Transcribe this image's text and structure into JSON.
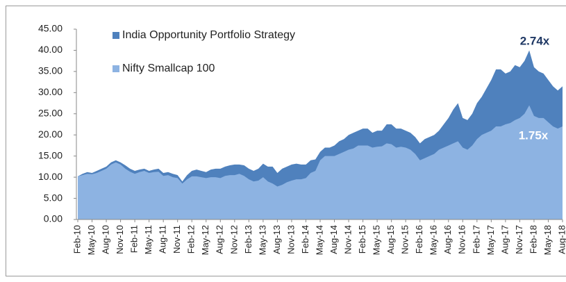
{
  "chart_data": {
    "type": "area",
    "categories": [
      "Feb-10",
      null,
      null,
      "May-10",
      null,
      null,
      "Aug-10",
      null,
      null,
      "Nov-10",
      null,
      null,
      "Feb-11",
      null,
      null,
      "May-11",
      null,
      null,
      "Aug-11",
      null,
      null,
      "Nov-11",
      null,
      null,
      "Feb-12",
      null,
      null,
      "May-12",
      null,
      null,
      "Aug-12",
      null,
      null,
      "Nov-12",
      null,
      null,
      "Feb-13",
      null,
      null,
      "May-13",
      null,
      null,
      "Aug-13",
      null,
      null,
      "Nov-13",
      null,
      null,
      "Feb-14",
      null,
      null,
      "May-14",
      null,
      null,
      "Aug-14",
      null,
      null,
      "Nov-14",
      null,
      null,
      "Feb-15",
      null,
      null,
      "May-15",
      null,
      null,
      "Aug-15",
      null,
      null,
      "Nov-15",
      null,
      null,
      "Feb-16",
      null,
      null,
      "May-16",
      null,
      null,
      "Aug-16",
      null,
      null,
      "Nov-16",
      null,
      null,
      "Feb-17",
      null,
      null,
      "May-17",
      null,
      null,
      "Aug-17",
      null,
      null,
      "Nov-17",
      null,
      null,
      "Feb-18",
      null,
      null,
      "May-18",
      null,
      null,
      "Aug-18"
    ],
    "series": [
      {
        "name": "India Opportunity Portfolio Strategy",
        "color": "#4f81bd",
        "values": [
          10.2,
          10.8,
          11.2,
          11,
          11.5,
          12,
          12.5,
          13.5,
          14,
          13.5,
          12.8,
          12,
          11.5,
          11.8,
          12,
          11.5,
          11.8,
          12,
          11,
          11.2,
          10.8,
          10.5,
          9,
          10.5,
          11.5,
          11.8,
          11.5,
          11.2,
          11.8,
          12,
          12,
          12.5,
          12.8,
          13,
          13,
          12.8,
          12,
          11.5,
          12,
          13.2,
          12.5,
          12.5,
          11,
          12,
          12.5,
          13,
          13.2,
          13,
          13,
          14,
          14.2,
          16,
          17,
          17,
          17.5,
          18.5,
          19,
          20,
          20.5,
          21,
          21.5,
          21.5,
          20.5,
          21,
          21,
          22.5,
          22.5,
          21.5,
          21.5,
          21,
          20.5,
          19.5,
          18,
          19,
          19.5,
          20,
          21,
          22.5,
          24,
          26,
          27.5,
          24,
          23.5,
          25,
          27.5,
          29,
          31,
          33,
          35.5,
          35.5,
          34.5,
          35,
          36.5,
          36,
          37.5,
          40,
          36,
          35,
          34.5,
          33,
          31.5,
          30.5,
          31.5
        ]
      },
      {
        "name": "Nifty Smallcap 100",
        "color": "#8db3e2",
        "values": [
          10.2,
          10.5,
          10.8,
          10.7,
          11,
          11.5,
          12,
          13,
          13.5,
          13,
          12,
          11.3,
          10.8,
          11.2,
          11.5,
          11,
          11.2,
          11.3,
          10.3,
          10.5,
          10,
          9.8,
          8.5,
          9.5,
          10.2,
          10.2,
          10,
          9.8,
          10,
          10,
          9.8,
          10.3,
          10.5,
          10.5,
          10.8,
          10.3,
          9.5,
          9,
          9.2,
          10,
          9,
          8.5,
          7.8,
          8.2,
          8.8,
          9.2,
          9.5,
          9.5,
          9.8,
          11,
          11.5,
          14,
          15,
          15,
          15,
          15.5,
          16,
          16.5,
          16.8,
          17.5,
          17.5,
          17.5,
          17,
          17.2,
          17.3,
          18,
          17.8,
          17,
          17.2,
          17,
          16.5,
          15.5,
          14,
          14.5,
          15,
          15.5,
          16.5,
          17,
          17.5,
          18,
          18.5,
          17,
          16.5,
          17.5,
          19,
          20,
          20.5,
          21,
          22,
          22,
          22.5,
          22.8,
          23.5,
          24,
          25,
          27,
          24.5,
          24,
          24,
          23,
          22,
          21.5,
          22
        ]
      }
    ],
    "annotations": [
      "2.74x",
      "1.75x"
    ],
    "ylim": [
      0,
      45
    ],
    "yticks": [
      {
        "value": 0,
        "label": "0.00"
      },
      {
        "value": 5,
        "label": "5.00"
      },
      {
        "value": 10,
        "label": "10.00"
      },
      {
        "value": 15,
        "label": "15.00"
      },
      {
        "value": 20,
        "label": "20.00"
      },
      {
        "value": 25,
        "label": "25.00"
      },
      {
        "value": 30,
        "label": "30.00"
      },
      {
        "value": 35,
        "label": "35.00"
      },
      {
        "value": 40,
        "label": "40.00"
      },
      {
        "value": 45,
        "label": "45.00"
      }
    ],
    "grid": false,
    "legend": "top-left"
  }
}
